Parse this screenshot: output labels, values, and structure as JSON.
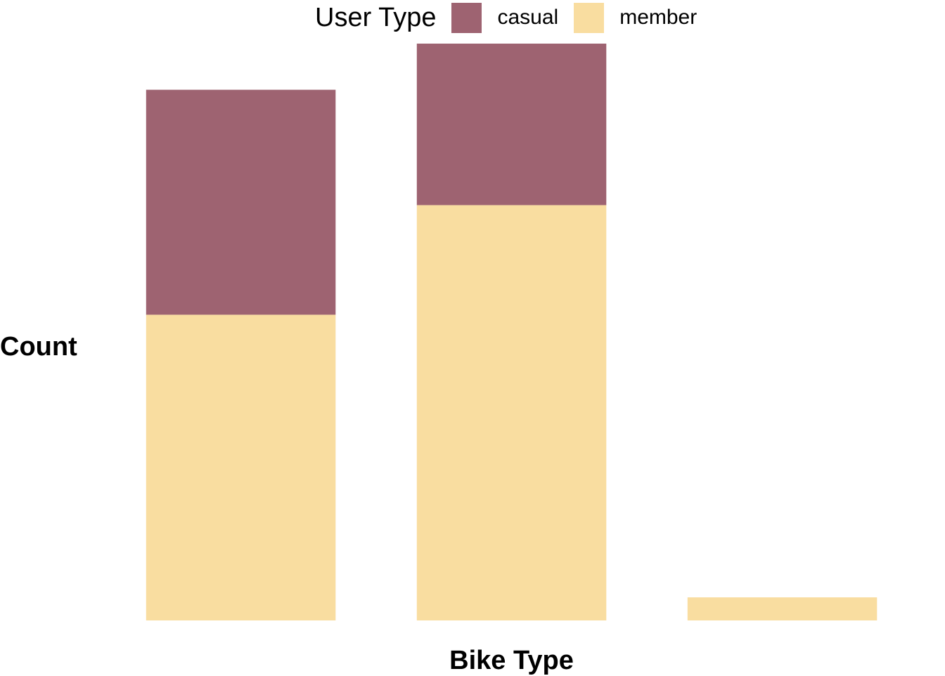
{
  "chart_data": {
    "type": "bar",
    "stacked": true,
    "title": "",
    "xlabel": "Bike Type",
    "ylabel": "Count",
    "x_tick_labels_shown": false,
    "y_tick_labels_shown": false,
    "grid": false,
    "legend": {
      "title": "User Type",
      "placement": "top"
    },
    "categories": [
      "",
      "",
      ""
    ],
    "ylim": [
      0,
      100
    ],
    "series": [
      {
        "name": "member",
        "color": "#F9DDA0",
        "values": [
          53,
          72,
          4
        ]
      },
      {
        "name": "casual",
        "color": "#9E6371",
        "values": [
          39,
          28,
          0
        ]
      }
    ]
  }
}
